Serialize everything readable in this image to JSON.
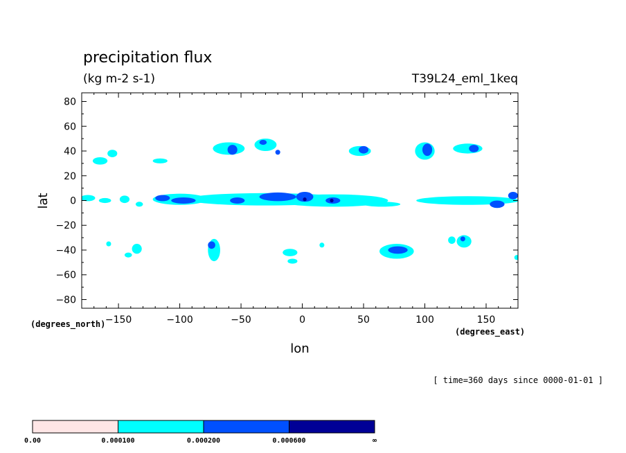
{
  "header": {
    "title": "precipitation flux",
    "units": "(kg m-2 s-1)",
    "dataset": "T39L24_eml_1keq",
    "time_note": "[ time=360 days since 0000-01-01 ]"
  },
  "axes": {
    "xlabel": "lon",
    "ylabel": "lat",
    "x_unit_label": "(degrees_east)",
    "y_unit_label": "(degrees_north)",
    "x_tick_labels": [
      "−150",
      "−100",
      "−50",
      "0",
      "50",
      "100",
      "150"
    ],
    "y_tick_labels": [
      "80",
      "60",
      "40",
      "20",
      "0",
      "−20",
      "−40",
      "−60",
      "−80"
    ]
  },
  "colorbar": {
    "labels": [
      "0.00",
      "0.000100",
      "0.000200",
      "0.000600",
      "∞"
    ],
    "colors": [
      "#ffe6e6",
      "#00ffff",
      "#0050ff",
      "#000096"
    ]
  },
  "chart_data": {
    "type": "heatmap",
    "title": "precipitation flux",
    "subtitle": "(kg m-2 s-1)",
    "xlabel": "lon",
    "ylabel": "lat",
    "xlim": [
      -180,
      176
    ],
    "ylim": [
      -87,
      87
    ],
    "x_ticks": [
      -150,
      -100,
      -50,
      0,
      50,
      100,
      150
    ],
    "y_ticks": [
      80,
      60,
      40,
      20,
      0,
      -20,
      -40,
      -60,
      -80
    ],
    "levels": [
      0.0,
      0.0001,
      0.0002,
      0.0006
    ],
    "level_colors": [
      "#ffe6e6",
      "#00ffff",
      "#0050ff",
      "#000096"
    ],
    "regions": [
      {
        "level": 1,
        "lon": -175,
        "lat": 2,
        "rlon": 6,
        "rlat": 2.5
      },
      {
        "level": 1,
        "lon": -161,
        "lat": 0,
        "rlon": 5,
        "rlat": 2
      },
      {
        "level": 1,
        "lon": -145,
        "lat": 1,
        "rlon": 4,
        "rlat": 3
      },
      {
        "level": 1,
        "lon": -133,
        "lat": -3,
        "rlon": 3,
        "rlat": 2
      },
      {
        "level": 1,
        "lon": -100,
        "lat": 1,
        "rlon": 22,
        "rlat": 4.5
      },
      {
        "level": 2,
        "lon": -114,
        "lat": 2,
        "rlon": 6,
        "rlat": 2.5
      },
      {
        "level": 2,
        "lon": -97,
        "lat": 0,
        "rlon": 10,
        "rlat": 2.5
      },
      {
        "level": 1,
        "lon": -165,
        "lat": 32,
        "rlon": 6,
        "rlat": 3
      },
      {
        "level": 1,
        "lon": -155,
        "lat": 38,
        "rlon": 4,
        "rlat": 3
      },
      {
        "level": 1,
        "lon": -116,
        "lat": 32,
        "rlon": 6,
        "rlat": 2
      },
      {
        "level": 1,
        "lon": -158,
        "lat": -35,
        "rlon": 2,
        "rlat": 2
      },
      {
        "level": 1,
        "lon": -135,
        "lat": -39,
        "rlon": 4,
        "rlat": 4
      },
      {
        "level": 1,
        "lon": -142,
        "lat": -44,
        "rlon": 3,
        "rlat": 2
      },
      {
        "level": 1,
        "lon": -72,
        "lat": -40,
        "rlon": 5,
        "rlat": 9
      },
      {
        "level": 2,
        "lon": -74,
        "lat": -36,
        "rlon": 3,
        "rlat": 3
      },
      {
        "level": 1,
        "lon": -60,
        "lat": 42,
        "rlon": 13,
        "rlat": 5
      },
      {
        "level": 2,
        "lon": -57,
        "lat": 41,
        "rlon": 4,
        "rlat": 4
      },
      {
        "level": 1,
        "lon": -30,
        "lat": 45,
        "rlon": 9,
        "rlat": 5
      },
      {
        "level": 2,
        "lon": -32,
        "lat": 47,
        "rlon": 3,
        "rlat": 2
      },
      {
        "level": 2,
        "lon": -20,
        "lat": 39,
        "rlon": 2,
        "rlat": 2
      },
      {
        "level": 1,
        "lon": -30,
        "lat": 1,
        "rlon": 65,
        "rlat": 5
      },
      {
        "level": 2,
        "lon": -53,
        "lat": 0,
        "rlon": 6,
        "rlat": 2.5
      },
      {
        "level": 2,
        "lon": -20,
        "lat": 3,
        "rlon": 15,
        "rlat": 3.5
      },
      {
        "level": 1,
        "lon": 25,
        "lat": 0,
        "rlon": 45,
        "rlat": 5
      },
      {
        "level": 1,
        "lon": 65,
        "lat": -3,
        "rlon": 15,
        "rlat": 2
      },
      {
        "level": 2,
        "lon": 2,
        "lat": 3,
        "rlon": 7,
        "rlat": 4
      },
      {
        "level": 3,
        "lon": 2,
        "lat": 1,
        "rlon": 1.5,
        "rlat": 1.5
      },
      {
        "level": 2,
        "lon": 25,
        "lat": 0,
        "rlon": 6,
        "rlat": 2.5
      },
      {
        "level": 3,
        "lon": 24,
        "lat": 0,
        "rlon": 1.5,
        "rlat": 1.5
      },
      {
        "level": 1,
        "lon": -10,
        "lat": -42,
        "rlon": 6,
        "rlat": 3
      },
      {
        "level": 1,
        "lon": -8,
        "lat": -49,
        "rlon": 4,
        "rlat": 2
      },
      {
        "level": 1,
        "lon": 16,
        "lat": -36,
        "rlon": 2,
        "rlat": 2
      },
      {
        "level": 1,
        "lon": 47,
        "lat": 40,
        "rlon": 9,
        "rlat": 4
      },
      {
        "level": 2,
        "lon": 50,
        "lat": 41,
        "rlon": 4,
        "rlat": 3
      },
      {
        "level": 1,
        "lon": 77,
        "lat": -41,
        "rlon": 14,
        "rlat": 6
      },
      {
        "level": 2,
        "lon": 78,
        "lat": -40,
        "rlon": 8,
        "rlat": 3
      },
      {
        "level": 1,
        "lon": 100,
        "lat": 40,
        "rlon": 8,
        "rlat": 7
      },
      {
        "level": 2,
        "lon": 102,
        "lat": 41,
        "rlon": 4,
        "rlat": 5
      },
      {
        "level": 1,
        "lon": 135,
        "lat": 42,
        "rlon": 12,
        "rlat": 4
      },
      {
        "level": 2,
        "lon": 140,
        "lat": 42,
        "rlon": 4,
        "rlat": 3
      },
      {
        "level": 1,
        "lon": 135,
        "lat": 0,
        "rlon": 42,
        "rlat": 3.5
      },
      {
        "level": 2,
        "lon": 159,
        "lat": -3,
        "rlon": 6,
        "rlat": 3
      },
      {
        "level": 2,
        "lon": 172,
        "lat": 4,
        "rlon": 4,
        "rlat": 3
      },
      {
        "level": 1,
        "lon": 122,
        "lat": -32,
        "rlon": 3,
        "rlat": 3
      },
      {
        "level": 1,
        "lon": 132,
        "lat": -33,
        "rlon": 6,
        "rlat": 5
      },
      {
        "level": 2,
        "lon": 131,
        "lat": -31,
        "rlon": 2,
        "rlat": 2
      },
      {
        "level": 1,
        "lon": 175,
        "lat": -46,
        "rlon": 2,
        "rlat": 2
      }
    ]
  }
}
